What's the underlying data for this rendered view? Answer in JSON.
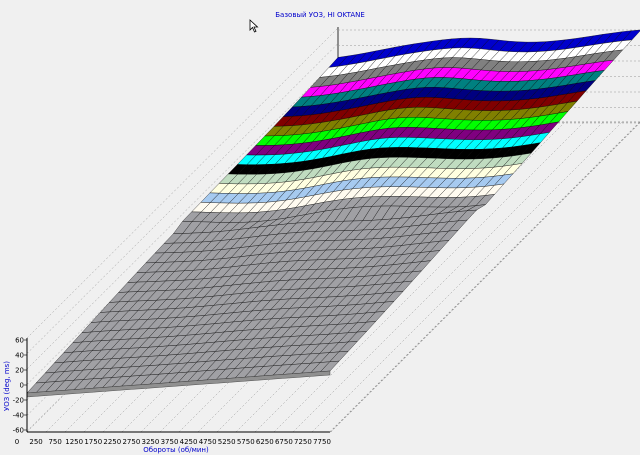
{
  "chart_data": {
    "type": "surface",
    "title": "Базовый УОЗ, HI OKTANE",
    "xlabel": "Обороты (об/мин)",
    "zlabel": "УОЗ (deg, ms)",
    "x_ticks": [
      "0",
      "250",
      "750",
      "1250",
      "1750",
      "2250",
      "2750",
      "3250",
      "3750",
      "4250",
      "4750",
      "5250",
      "5750",
      "6250",
      "6750",
      "7250",
      "7750"
    ],
    "z_ticks": [
      "60",
      "40",
      "20",
      "0",
      "-20",
      "-40",
      "-60"
    ],
    "zlim": [
      -60,
      60
    ],
    "grid": true,
    "band_colors": [
      "#0000cc",
      "#ffffff",
      "#808080",
      "#ff00ff",
      "#008080",
      "#000080",
      "#800000",
      "#808000",
      "#00ff00",
      "#800080",
      "#00ffff",
      "#000000",
      "#c0dcc0",
      "#ffffe0",
      "#a6caf0",
      "#fffbf0",
      "#a0a0a4"
    ]
  },
  "cursor": "mouse-pointer-icon"
}
